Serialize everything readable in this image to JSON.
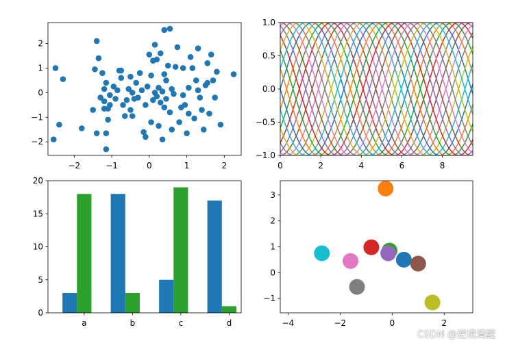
{
  "watermark": "CSDN @逆境清醒",
  "colors": {
    "tab10": [
      "#1f77b4",
      "#ff7f0e",
      "#2ca02c",
      "#d62728",
      "#9467bd",
      "#8c564b",
      "#e377c2",
      "#7f7f7f",
      "#bcbd22",
      "#17becf"
    ],
    "blue": "#1f77b4",
    "green": "#2ca02c"
  },
  "chart_data": [
    {
      "type": "scatter",
      "title": "",
      "xlabel": "",
      "ylabel": "",
      "xlim": [
        -2.7,
        2.45
      ],
      "ylim": [
        -2.55,
        2.85
      ],
      "xticks": [
        -2,
        -1,
        0,
        1,
        2
      ],
      "yticks": [
        -2,
        -1,
        0,
        1,
        2
      ],
      "color": "#1f77b4",
      "points": [
        [
          -2.5,
          1.0
        ],
        [
          -2.4,
          -1.3
        ],
        [
          -2.3,
          0.55
        ],
        [
          -2.55,
          -1.9
        ],
        [
          -1.8,
          -1.45
        ],
        [
          -1.4,
          2.1
        ],
        [
          -1.35,
          1.4
        ],
        [
          -1.4,
          -1.65
        ],
        [
          -1.5,
          -0.7
        ],
        [
          -1.45,
          0.95
        ],
        [
          -1.25,
          0.8
        ],
        [
          -1.2,
          0.15
        ],
        [
          -1.2,
          -0.35
        ],
        [
          -1.1,
          -0.65
        ],
        [
          -1.1,
          -1.1
        ],
        [
          -1.15,
          -1.65
        ],
        [
          -1.15,
          -2.3
        ],
        [
          -1.2,
          -0.65
        ],
        [
          -1.15,
          0.4
        ],
        [
          -1.05,
          -0.1
        ],
        [
          -1.05,
          -0.5
        ],
        [
          -0.95,
          0.25
        ],
        [
          -0.9,
          -0.25
        ],
        [
          -0.85,
          0.1
        ],
        [
          -0.8,
          0.9
        ],
        [
          -0.75,
          0.9
        ],
        [
          -0.75,
          0.6
        ],
        [
          -0.7,
          -0.5
        ],
        [
          -0.65,
          -0.95
        ],
        [
          -0.6,
          -0.3
        ],
        [
          -0.55,
          0.15
        ],
        [
          -0.5,
          0.65
        ],
        [
          -0.5,
          -0.7
        ],
        [
          -0.45,
          0.0
        ],
        [
          -0.4,
          -0.25
        ],
        [
          -0.35,
          0.4
        ],
        [
          -0.3,
          -0.2
        ],
        [
          -0.25,
          0.8
        ],
        [
          -0.2,
          0.1
        ],
        [
          -0.15,
          -1.6
        ],
        [
          -0.1,
          -1.8
        ],
        [
          -0.1,
          -0.5
        ],
        [
          -0.05,
          0.25
        ],
        [
          0.0,
          1.55
        ],
        [
          0.05,
          -1.2
        ],
        [
          0.05,
          0.7
        ],
        [
          0.1,
          1.3
        ],
        [
          0.1,
          -0.3
        ],
        [
          0.15,
          1.95
        ],
        [
          0.15,
          0.0
        ],
        [
          0.2,
          1.35
        ],
        [
          0.25,
          -1.35
        ],
        [
          0.25,
          0.2
        ],
        [
          0.3,
          1.6
        ],
        [
          0.3,
          -0.4
        ],
        [
          0.35,
          0.05
        ],
        [
          0.35,
          -1.9
        ],
        [
          0.4,
          2.55
        ],
        [
          0.4,
          0.75
        ],
        [
          0.4,
          -0.6
        ],
        [
          0.45,
          -0.25
        ],
        [
          0.45,
          0.5
        ],
        [
          0.5,
          1.1
        ],
        [
          0.55,
          2.6
        ],
        [
          0.55,
          -0.8
        ],
        [
          0.6,
          0.15
        ],
        [
          0.6,
          -1.5
        ],
        [
          0.7,
          1.05
        ],
        [
          0.75,
          1.85
        ],
        [
          0.8,
          -1.2
        ],
        [
          0.85,
          -0.6
        ],
        [
          0.9,
          1.0
        ],
        [
          0.95,
          -0.5
        ],
        [
          1.0,
          -1.65
        ],
        [
          1.05,
          0.2
        ],
        [
          1.05,
          -0.85
        ],
        [
          1.1,
          1.45
        ],
        [
          1.15,
          1.0
        ],
        [
          1.2,
          -1.05
        ],
        [
          1.25,
          0.5
        ],
        [
          1.3,
          1.8
        ],
        [
          1.35,
          -0.2
        ],
        [
          1.4,
          -0.7
        ],
        [
          1.45,
          -1.5
        ],
        [
          1.5,
          0.3
        ],
        [
          1.55,
          1.2
        ],
        [
          1.6,
          -0.85
        ],
        [
          1.65,
          1.55
        ],
        [
          1.7,
          0.5
        ],
        [
          1.75,
          -0.2
        ],
        [
          1.8,
          0.85
        ],
        [
          1.9,
          -1.3
        ],
        [
          2.25,
          0.75
        ],
        [
          1.3,
          0.1
        ],
        [
          -0.45,
          -0.95
        ],
        [
          0.9,
          -0.1
        ],
        [
          1.55,
          0.4
        ],
        [
          -1.3,
          -0.2
        ],
        [
          0.65,
          -0.05
        ],
        [
          0.2,
          -0.15
        ]
      ]
    },
    {
      "type": "line",
      "title": "",
      "xlabel": "",
      "ylabel": "",
      "xlim": [
        0,
        9.5
      ],
      "ylim": [
        -1.0,
        1.0
      ],
      "xticks": [
        0,
        2,
        4,
        6,
        8
      ],
      "yticks": [
        -1.0,
        -0.5,
        0.0,
        0.5,
        1.0
      ],
      "series_formula": "y = sin(x - k*pi/10), k = 0..19",
      "x_range": [
        0,
        9.5
      ],
      "num_series": 20
    },
    {
      "type": "bar",
      "title": "",
      "xlabel": "",
      "ylabel": "",
      "categories": [
        "a",
        "b",
        "c",
        "d"
      ],
      "series": [
        {
          "color": "#1f77b4",
          "values": [
            3,
            18,
            5,
            17
          ]
        },
        {
          "color": "#2ca02c",
          "values": [
            18,
            3,
            19,
            1
          ]
        }
      ],
      "ylim": [
        0,
        20
      ],
      "yticks": [
        0,
        5,
        10,
        15,
        20
      ]
    },
    {
      "type": "scatter",
      "title": "",
      "xlabel": "",
      "ylabel": "",
      "xlim": [
        -4.3,
        3.1
      ],
      "ylim": [
        -1.55,
        3.55
      ],
      "xticks": [
        -4,
        -2,
        0,
        2
      ],
      "yticks": [
        -1,
        0,
        1,
        2,
        3
      ],
      "points": [
        {
          "x": -0.25,
          "y": 3.25,
          "color": "#ff7f0e"
        },
        {
          "x": -0.8,
          "y": 0.98,
          "color": "#d62728"
        },
        {
          "x": -0.1,
          "y": 0.85,
          "color": "#2ca02c"
        },
        {
          "x": -0.15,
          "y": 0.75,
          "color": "#9467bd"
        },
        {
          "x": 0.45,
          "y": 0.5,
          "color": "#1f77b4"
        },
        {
          "x": 1.0,
          "y": 0.35,
          "color": "#8c564b"
        },
        {
          "x": -2.7,
          "y": 0.75,
          "color": "#17becf"
        },
        {
          "x": -1.6,
          "y": 0.45,
          "color": "#e377c2"
        },
        {
          "x": -1.35,
          "y": -0.55,
          "color": "#7f7f7f"
        },
        {
          "x": 1.55,
          "y": -1.15,
          "color": "#bcbd22"
        }
      ]
    }
  ]
}
